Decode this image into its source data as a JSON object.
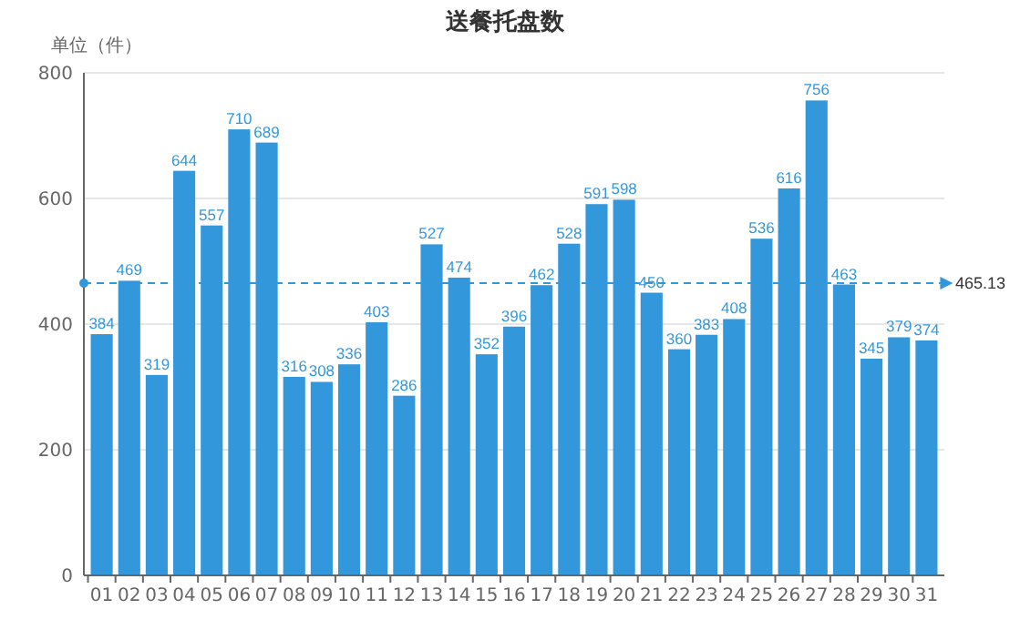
{
  "chart_data": {
    "type": "bar",
    "title": "送餐托盘数",
    "ylabel": "单位（件）",
    "categories": [
      "01",
      "02",
      "03",
      "04",
      "05",
      "06",
      "07",
      "08",
      "09",
      "10",
      "11",
      "12",
      "13",
      "14",
      "15",
      "16",
      "17",
      "18",
      "19",
      "20",
      "21",
      "22",
      "23",
      "24",
      "25",
      "26",
      "27",
      "28",
      "29",
      "30",
      "31"
    ],
    "values": [
      384,
      469,
      319,
      644,
      557,
      710,
      689,
      316,
      308,
      336,
      403,
      286,
      527,
      474,
      352,
      396,
      462,
      528,
      591,
      598,
      450,
      360,
      383,
      408,
      536,
      616,
      756,
      463,
      345,
      379,
      374
    ],
    "color": "#3398db",
    "ylim": [
      0,
      800
    ],
    "yticks": [
      0,
      200,
      400,
      600,
      800
    ],
    "grid": "y",
    "data_labels": true,
    "ref_lines": [
      {
        "axis": "y",
        "value": 465.13,
        "label": "465.13",
        "color": "#3398db",
        "line_style": "dashed"
      }
    ]
  }
}
